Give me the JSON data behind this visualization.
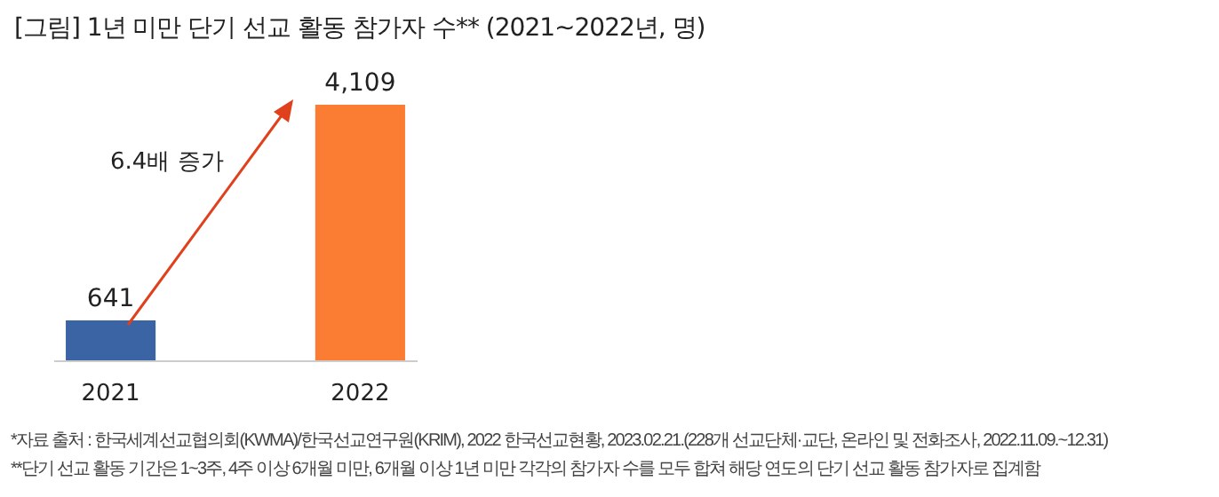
{
  "chart_data": {
    "type": "bar",
    "title": "[그림] 1년 미만 단기 선교 활동 참가자 수** (2021~2022년, 명)",
    "categories": [
      "2021",
      "2022"
    ],
    "values": [
      641,
      4109
    ],
    "colors": [
      "#3a64a4",
      "#fb7d33"
    ],
    "value_labels": [
      "641",
      "4,109"
    ],
    "annotations": [
      "6.4배 증가",
      "*자료 출처 : 한국세계선교협의회(KWMA)/한국선교연구원(KRIM), 2022 한국선교현황, 2023.02.21.(228개 선교단체·교단, 온라인 및 전화조사, 2022.11.09.~12.31)",
      "**단기 선교 활동 기간은 1~3주, 4주 이상 6개월 미만, 6개월 이상 1년 미만 각각의 참가자 수를 모두 합쳐 해당 연도의 단기 선교 활동 참가자로 집계함"
    ]
  }
}
